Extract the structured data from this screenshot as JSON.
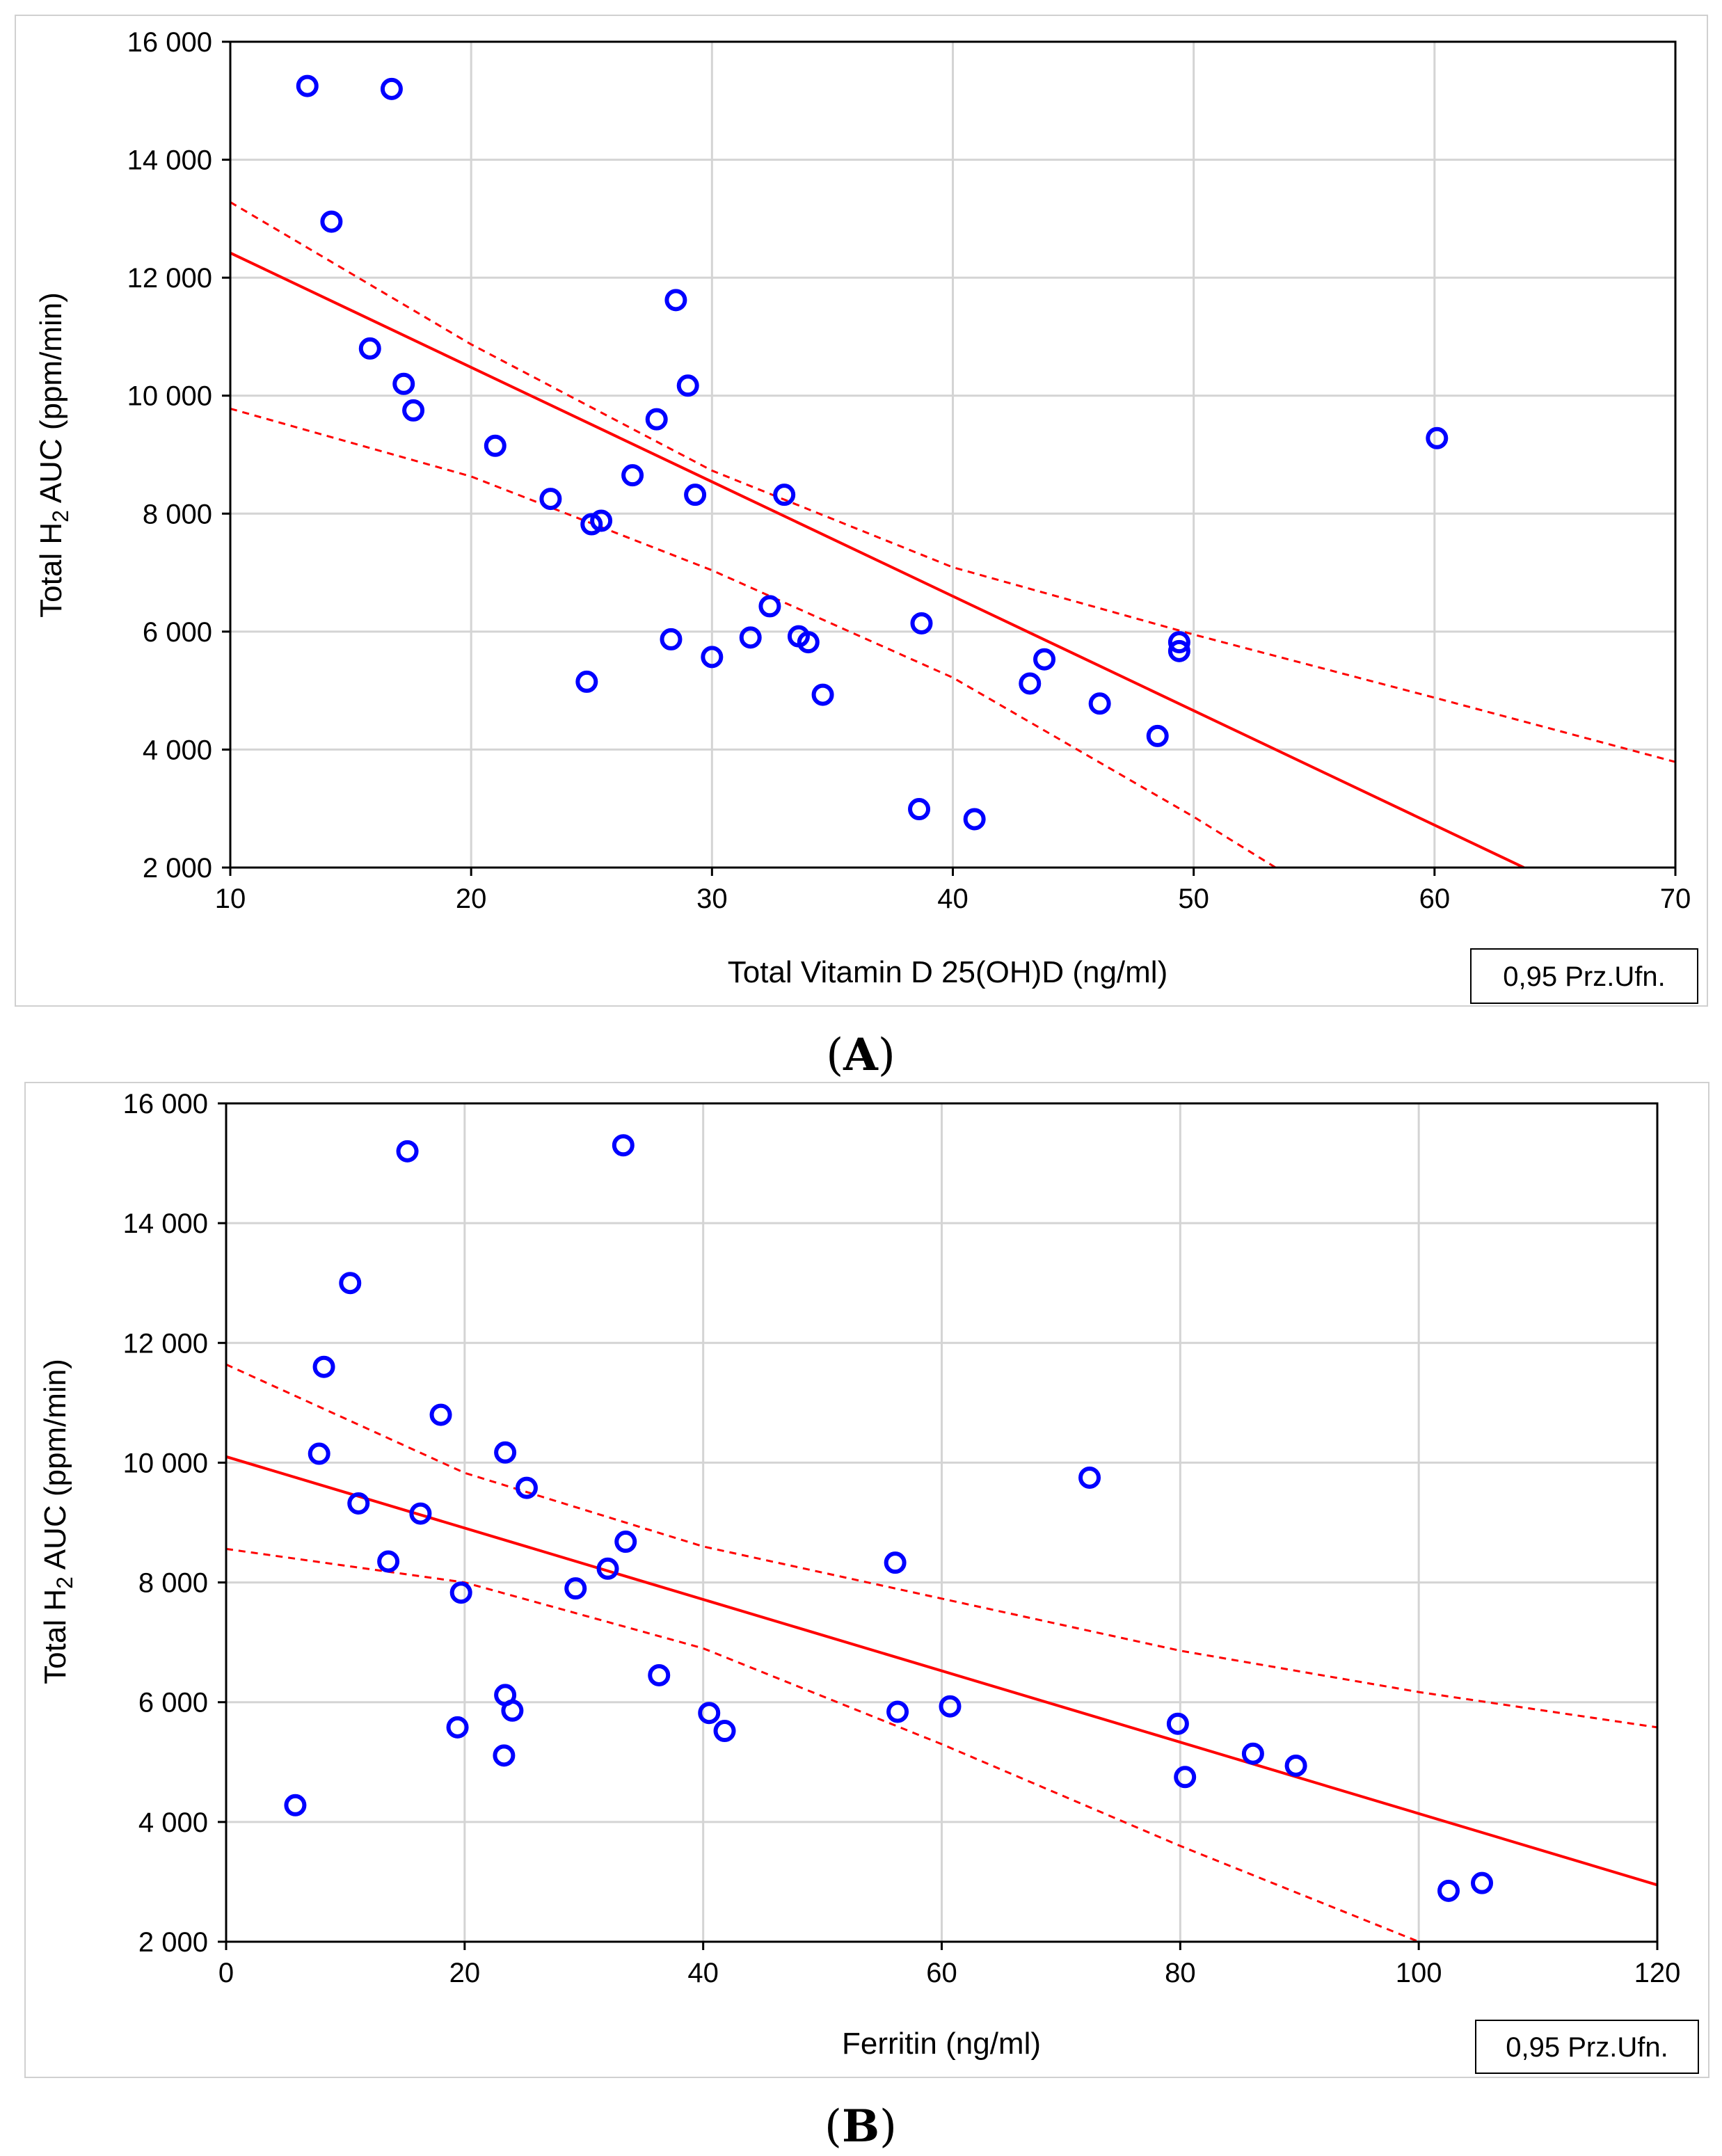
{
  "chart_data": [
    {
      "type": "scatter",
      "panel_label": "A",
      "title": "",
      "xlabel": "Total Vitamin D 25(OH)D (ng/ml)",
      "ylabel": "Total H2 AUC (ppm/min)",
      "ylabel_parts": {
        "pre": "Total H",
        "sub": "2",
        "post": " AUC (ppm/min)"
      },
      "xlim": [
        10,
        70
      ],
      "ylim": [
        2000,
        16000
      ],
      "xticks": [
        10,
        20,
        30,
        40,
        50,
        60,
        70
      ],
      "yticks": [
        2000,
        4000,
        6000,
        8000,
        10000,
        12000,
        14000,
        16000
      ],
      "ytick_labels": [
        "2 000",
        "4 000",
        "6 000",
        "8 000",
        "10 000",
        "12 000",
        "14 000",
        "16 000"
      ],
      "grid": true,
      "confidence_label": "0,95 Prz.Ufn.",
      "points": [
        [
          13.2,
          15250
        ],
        [
          16.7,
          15200
        ],
        [
          14.2,
          12950
        ],
        [
          15.8,
          10800
        ],
        [
          17.2,
          10200
        ],
        [
          17.6,
          9750
        ],
        [
          21.0,
          9150
        ],
        [
          23.3,
          8250
        ],
        [
          25.0,
          7820
        ],
        [
          25.4,
          7880
        ],
        [
          26.7,
          8650
        ],
        [
          27.7,
          9600
        ],
        [
          28.5,
          11620
        ],
        [
          29.0,
          10170
        ],
        [
          29.3,
          8320
        ],
        [
          33.0,
          8320
        ],
        [
          24.8,
          5150
        ],
        [
          28.3,
          5870
        ],
        [
          30.0,
          5570
        ],
        [
          31.6,
          5900
        ],
        [
          32.4,
          6430
        ],
        [
          33.6,
          5920
        ],
        [
          34.0,
          5820
        ],
        [
          34.6,
          4930
        ],
        [
          38.7,
          6140
        ],
        [
          38.6,
          2990
        ],
        [
          40.9,
          2820
        ],
        [
          43.2,
          5120
        ],
        [
          43.8,
          5530
        ],
        [
          46.1,
          4780
        ],
        [
          48.5,
          4230
        ],
        [
          49.4,
          5820
        ],
        [
          49.4,
          5670
        ],
        [
          60.1,
          9280
        ]
      ],
      "fit": {
        "intercept": 14360,
        "slope": -194
      },
      "ci_upper": [
        [
          10,
          13280
        ],
        [
          20,
          10870
        ],
        [
          30,
          8730
        ],
        [
          40,
          7090
        ],
        [
          50,
          5950
        ],
        [
          60,
          4880
        ],
        [
          70,
          3790
        ]
      ],
      "ci_lower": [
        [
          10,
          9780
        ],
        [
          20,
          8630
        ],
        [
          30,
          7040
        ],
        [
          40,
          5220
        ],
        [
          50,
          2860
        ],
        [
          53.4,
          2000
        ]
      ]
    },
    {
      "type": "scatter",
      "panel_label": "B",
      "title": "",
      "xlabel": "Ferritin (ng/ml)",
      "ylabel": "Total H2 AUC (ppm/min)",
      "ylabel_parts": {
        "pre": "Total H",
        "sub": "2",
        "post": " AUC (ppm/min)"
      },
      "xlim": [
        0,
        120
      ],
      "ylim": [
        2000,
        16000
      ],
      "xticks": [
        0,
        20,
        40,
        60,
        80,
        100,
        120
      ],
      "yticks": [
        2000,
        4000,
        6000,
        8000,
        10000,
        12000,
        14000,
        16000
      ],
      "ytick_labels": [
        "2 000",
        "4 000",
        "6 000",
        "8 000",
        "10 000",
        "12 000",
        "14 000",
        "16 000"
      ],
      "grid": true,
      "confidence_label": "0,95 Prz.Ufn.",
      "points": [
        [
          15.2,
          15200
        ],
        [
          33.3,
          15300
        ],
        [
          10.4,
          13000
        ],
        [
          8.2,
          11600
        ],
        [
          18.0,
          10800
        ],
        [
          7.8,
          10150
        ],
        [
          11.1,
          9320
        ],
        [
          16.3,
          9150
        ],
        [
          23.4,
          10170
        ],
        [
          25.2,
          9580
        ],
        [
          13.6,
          8350
        ],
        [
          19.7,
          7830
        ],
        [
          29.3,
          7900
        ],
        [
          32.0,
          8230
        ],
        [
          33.5,
          8680
        ],
        [
          19.4,
          5580
        ],
        [
          23.3,
          5110
        ],
        [
          23.4,
          6120
        ],
        [
          24.0,
          5860
        ],
        [
          36.3,
          6450
        ],
        [
          40.5,
          5820
        ],
        [
          41.8,
          5520
        ],
        [
          56.1,
          8330
        ],
        [
          56.3,
          5840
        ],
        [
          60.7,
          5930
        ],
        [
          72.4,
          9750
        ],
        [
          79.8,
          5640
        ],
        [
          80.4,
          4750
        ],
        [
          86.1,
          5140
        ],
        [
          89.7,
          4940
        ],
        [
          5.8,
          4280
        ],
        [
          102.5,
          2850
        ],
        [
          105.3,
          2980
        ]
      ],
      "fit": {
        "intercept": 10100,
        "slope": -59.6
      },
      "ci_upper": [
        [
          0,
          11640
        ],
        [
          20,
          9830
        ],
        [
          40,
          8600
        ],
        [
          60,
          7730
        ],
        [
          80,
          6860
        ],
        [
          100,
          6170
        ],
        [
          120,
          5580
        ]
      ],
      "ci_lower": [
        [
          0,
          8560
        ],
        [
          20,
          8000
        ],
        [
          40,
          6900
        ],
        [
          60,
          5300
        ],
        [
          80,
          3600
        ],
        [
          100,
          2000
        ]
      ]
    }
  ]
}
